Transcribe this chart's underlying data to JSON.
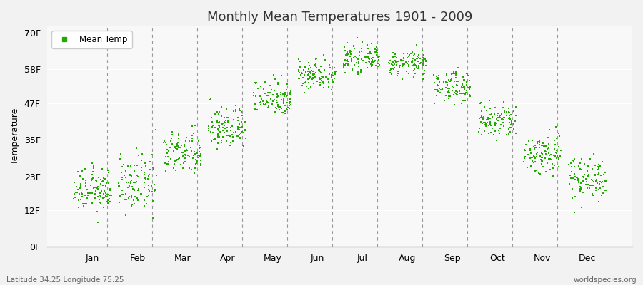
{
  "title": "Monthly Mean Temperatures 1901 - 2009",
  "ylabel": "Temperature",
  "yticks": [
    0,
    12,
    23,
    35,
    47,
    58,
    70
  ],
  "ytick_labels": [
    "0F",
    "12F",
    "23F",
    "35F",
    "47F",
    "58F",
    "70F"
  ],
  "ylim": [
    0,
    72
  ],
  "xlim": [
    0,
    13
  ],
  "months": [
    "Jan",
    "Feb",
    "Mar",
    "Apr",
    "May",
    "Jun",
    "Jul",
    "Aug",
    "Sep",
    "Oct",
    "Nov",
    "Dec"
  ],
  "dot_color": "#22AA00",
  "bg_color": "#F2F2F2",
  "plot_bg_color": "#F8F8F8",
  "legend_label": "Mean Temp",
  "subtitle_left": "Latitude 34.25 Longitude 75.25",
  "subtitle_right": "worldspecies.org",
  "num_years": 109,
  "monthly_means": [
    18.5,
    20.5,
    30.5,
    39.0,
    49.0,
    56.5,
    61.5,
    60.0,
    52.5,
    41.0,
    30.5,
    22.5
  ],
  "monthly_stds": [
    3.5,
    4.5,
    3.5,
    3.5,
    3.0,
    2.5,
    2.0,
    2.0,
    2.5,
    3.0,
    3.5,
    3.5
  ],
  "xtick_positions": [
    1,
    2,
    3,
    4,
    5,
    6,
    7,
    8,
    9,
    10,
    11,
    12
  ],
  "dashed_lines": [
    1.33,
    2.33,
    3.33,
    4.33,
    5.33,
    6.33,
    7.33,
    8.33,
    9.33,
    10.33,
    11.33
  ]
}
